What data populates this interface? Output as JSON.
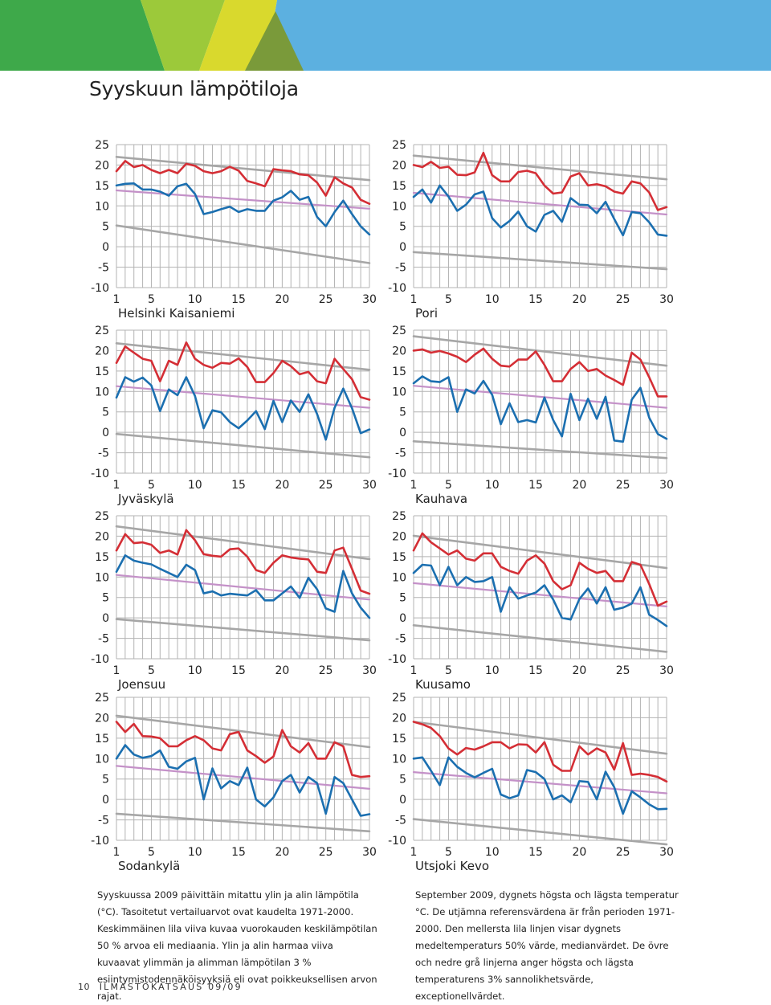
{
  "page": {
    "title": "Syyskuun lämpötiloja",
    "footer_page": "10",
    "footer_text": "ILMASTOKATSAUS 09/09"
  },
  "colors": {
    "max_temp": "#d42e35",
    "min_temp": "#1b6fb0",
    "median_mean": "#c491c8",
    "extreme_ref": "#a6a6a6",
    "grid": "#b3b3b3",
    "banner": [
      "#3ea94a",
      "#9cc93a",
      "#d9d92d",
      "#5cb0e0",
      "#55b0e6"
    ]
  },
  "captions": {
    "fi": "Syyskuussa 2009 päivittäin mitattu ylin ja alin lämpötila (°C). Tasoitetut vertailuarvot ovat kaudelta 1971-2000. Keskimmäinen lila viiva kuvaa vuorokauden keskilämpötilan 50 % arvoa eli mediaania. Ylin ja alin harmaa viiva kuvaavat ylimmän ja alimman lämpötilan 3 % esiintymistodennäköisyyksiä eli ovat poikkeuksellisen arvon rajat.",
    "sv": "September 2009, dygnets högsta och lägsta temperatur °C. De utjämna referensvärdena är från perioden 1971-2000. Den mellersta lila linjen visar dygnets medeltemperaturs 50% värde, medianvärdet. De övre och nedre grå linjerna anger högsta och lägsta temperaturens 3% sannolikhetsvärde, exceptionellvärdet."
  },
  "chart_data": [
    {
      "type": "line",
      "station": "Helsinki Kaisaniemi",
      "x_ticks": [
        1,
        5,
        10,
        15,
        20,
        25,
        30
      ],
      "y_ticks": [
        25,
        20,
        15,
        10,
        5,
        0,
        -5,
        -10
      ],
      "xlim": [
        1,
        30
      ],
      "ylim": [
        -10,
        25
      ],
      "series": [
        {
          "role": "max",
          "values": [
            18.5,
            21,
            19.5,
            20,
            18.8,
            18,
            18.8,
            18,
            20.3,
            19.8,
            18.5,
            18,
            18.5,
            19.6,
            18.6,
            16.1,
            15.5,
            14.8,
            19,
            18.7,
            18.5,
            17.7,
            17.5,
            15.7,
            12.5,
            17,
            15.5,
            14.5,
            11.5,
            10.5
          ]
        },
        {
          "role": "min",
          "values": [
            15,
            15.4,
            15.5,
            14,
            14,
            13.5,
            12.5,
            14.8,
            15.4,
            12.9,
            8,
            8.5,
            9.2,
            9.8,
            8.5,
            9.2,
            8.8,
            8.8,
            11.3,
            12.1,
            13.7,
            11.5,
            12.2,
            7.3,
            5,
            8.5,
            11.3,
            8,
            5,
            3
          ]
        },
        {
          "role": "median",
          "values": [
            13.8,
            9.3
          ]
        },
        {
          "role": "ext_high",
          "values": [
            22,
            16.3
          ]
        },
        {
          "role": "ext_low",
          "values": [
            5.2,
            -4
          ]
        }
      ]
    },
    {
      "type": "line",
      "station": "Pori",
      "x_ticks": [
        1,
        5,
        10,
        15,
        20,
        25,
        30
      ],
      "y_ticks": [
        25,
        20,
        15,
        10,
        5,
        0,
        -5,
        -10
      ],
      "xlim": [
        1,
        30
      ],
      "ylim": [
        -10,
        25
      ],
      "series": [
        {
          "role": "max",
          "values": [
            20,
            19.5,
            20.8,
            19.3,
            19.6,
            17.6,
            17.5,
            18.2,
            23,
            17.5,
            16,
            16,
            18.3,
            18.6,
            18,
            15,
            13,
            13.3,
            17.2,
            18,
            15,
            15.3,
            14.8,
            13.5,
            13,
            16,
            15.5,
            13.3,
            9,
            9.7
          ]
        },
        {
          "role": "min",
          "values": [
            12.2,
            14,
            10.8,
            15,
            12.3,
            8.8,
            10.3,
            12.8,
            13.5,
            7,
            4.7,
            6.3,
            8.6,
            5,
            3.7,
            7.8,
            8.8,
            6.1,
            11.9,
            10.3,
            10.2,
            8.2,
            11,
            6.8,
            2.8,
            8.5,
            8.2,
            6,
            3,
            2.7
          ]
        },
        {
          "role": "median",
          "values": [
            13.2,
            7.9
          ]
        },
        {
          "role": "ext_high",
          "values": [
            22.3,
            16.5
          ]
        },
        {
          "role": "ext_low",
          "values": [
            -1.3,
            -5.5
          ]
        }
      ]
    },
    {
      "type": "line",
      "station": "Jyväskylä",
      "x_ticks": [
        1,
        5,
        10,
        15,
        20,
        25,
        30
      ],
      "y_ticks": [
        25,
        20,
        15,
        10,
        5,
        0,
        -5,
        -10
      ],
      "xlim": [
        1,
        30
      ],
      "ylim": [
        -10,
        25
      ],
      "series": [
        {
          "role": "max",
          "values": [
            17,
            21,
            19.5,
            18,
            17.5,
            12.5,
            17.5,
            16.5,
            22,
            18,
            16.5,
            15.8,
            17,
            16.8,
            18.1,
            16,
            12.3,
            12.3,
            14.5,
            17.5,
            16.2,
            14.2,
            14.8,
            12.5,
            12,
            18,
            15.5,
            13,
            8.6,
            8
          ]
        },
        {
          "role": "min",
          "values": [
            8.5,
            13.5,
            12.4,
            13.4,
            11.5,
            5.2,
            10.5,
            9.1,
            13.5,
            8.9,
            1,
            5.4,
            4.9,
            2.5,
            1,
            2.9,
            5.2,
            0.8,
            7.7,
            2.5,
            7.8,
            5,
            9.3,
            4.5,
            -1.8,
            6,
            10.7,
            5.9,
            -0.2,
            0.7
          ]
        },
        {
          "role": "median",
          "values": [
            11.3,
            6
          ]
        },
        {
          "role": "ext_high",
          "values": [
            21.8,
            15.3
          ]
        },
        {
          "role": "ext_low",
          "values": [
            -0.4,
            -6.1
          ]
        }
      ]
    },
    {
      "type": "line",
      "station": "Kauhava",
      "x_ticks": [
        1,
        5,
        10,
        15,
        20,
        25,
        30
      ],
      "y_ticks": [
        25,
        20,
        15,
        10,
        5,
        0,
        -5,
        -10
      ],
      "xlim": [
        1,
        30
      ],
      "ylim": [
        -10,
        25
      ],
      "series": [
        {
          "role": "max",
          "values": [
            20,
            20.3,
            19.5,
            19.9,
            19.3,
            18.5,
            17.2,
            19,
            20.5,
            18,
            16.3,
            16.1,
            17.8,
            17.8,
            19.8,
            16.5,
            12.5,
            12.5,
            15.5,
            17.2,
            15,
            15.5,
            13.9,
            12.8,
            11.6,
            19.5,
            17.8,
            13.5,
            8.8,
            8.8
          ]
        },
        {
          "role": "min",
          "values": [
            12,
            13.7,
            12.5,
            12.3,
            13.5,
            5,
            10.5,
            9.5,
            12.6,
            9.2,
            2,
            7.1,
            2.5,
            3,
            2.4,
            8.5,
            3,
            -1,
            9.4,
            3,
            8.2,
            3.3,
            8.7,
            -2,
            -2.3,
            8,
            10.9,
            3.6,
            -0.4,
            -1.6
          ]
        },
        {
          "role": "median",
          "values": [
            11.4,
            6
          ]
        },
        {
          "role": "ext_high",
          "values": [
            23.5,
            16.3
          ]
        },
        {
          "role": "ext_low",
          "values": [
            -2.2,
            -6.3
          ]
        }
      ]
    },
    {
      "type": "line",
      "station": "Joensuu",
      "x_ticks": [
        1,
        5,
        10,
        15,
        20,
        25,
        30
      ],
      "y_ticks": [
        25,
        20,
        15,
        10,
        5,
        0,
        -5,
        -10
      ],
      "xlim": [
        1,
        30
      ],
      "ylim": [
        -10,
        25
      ],
      "series": [
        {
          "role": "max",
          "values": [
            16.5,
            20.5,
            18.3,
            18.5,
            17.9,
            15.9,
            16.5,
            15.5,
            21.5,
            19,
            15.6,
            15.2,
            15,
            16.8,
            17,
            15,
            11.7,
            11,
            13.5,
            15.3,
            14.8,
            14.5,
            14.3,
            11.3,
            11,
            16.5,
            17.2,
            12,
            6.7,
            5.9
          ]
        },
        {
          "role": "min",
          "values": [
            11.3,
            15.3,
            14,
            13.5,
            13.1,
            12,
            11,
            10,
            13,
            11.7,
            6,
            6.5,
            5.5,
            5.9,
            5.7,
            5.5,
            6.8,
            4.3,
            4.3,
            6,
            7.7,
            4.9,
            9.8,
            7,
            2.3,
            1.5,
            11.5,
            6,
            2.5,
            0
          ]
        },
        {
          "role": "median",
          "values": [
            10.5,
            4.5
          ]
        },
        {
          "role": "ext_high",
          "values": [
            22.4,
            14.4
          ]
        },
        {
          "role": "ext_low",
          "values": [
            -0.3,
            -5.5
          ]
        }
      ]
    },
    {
      "type": "line",
      "station": "Kuusamo",
      "x_ticks": [
        1,
        5,
        10,
        15,
        20,
        25,
        30
      ],
      "y_ticks": [
        25,
        20,
        15,
        10,
        5,
        0,
        -5,
        -10
      ],
      "xlim": [
        1,
        30
      ],
      "ylim": [
        -10,
        25
      ],
      "series": [
        {
          "role": "max",
          "values": [
            16.5,
            20.7,
            18.5,
            17,
            15.5,
            16.5,
            14.5,
            14,
            15.8,
            15.8,
            12.5,
            11.5,
            10.8,
            14,
            15.3,
            13.3,
            9,
            7,
            8,
            13.5,
            12,
            11,
            11.5,
            9,
            9,
            13.7,
            13,
            8.3,
            3,
            4
          ]
        },
        {
          "role": "min",
          "values": [
            11,
            13,
            12.8,
            8,
            12.5,
            8,
            10,
            8.8,
            9,
            10,
            1.5,
            7.5,
            4.7,
            5.5,
            6.2,
            8,
            4.5,
            0,
            -0.4,
            4.6,
            7.2,
            3.5,
            7.5,
            2,
            2.5,
            3.5,
            7.5,
            0.8,
            -0.5,
            -2
          ]
        },
        {
          "role": "median",
          "values": [
            8.5,
            2.8
          ]
        },
        {
          "role": "ext_high",
          "values": [
            20.1,
            12.2
          ]
        },
        {
          "role": "ext_low",
          "values": [
            -1.8,
            -8.3
          ]
        }
      ]
    },
    {
      "type": "line",
      "station": "Sodankylä",
      "x_ticks": [
        1,
        5,
        10,
        15,
        20,
        25,
        30
      ],
      "y_ticks": [
        25,
        20,
        15,
        10,
        5,
        0,
        -5,
        -10
      ],
      "xlim": [
        1,
        30
      ],
      "ylim": [
        -10,
        25
      ],
      "series": [
        {
          "role": "max",
          "values": [
            19,
            16.5,
            18.5,
            15.5,
            15.4,
            15,
            13,
            13,
            14.5,
            15.5,
            14.5,
            12.5,
            12,
            16,
            16.5,
            12,
            10.6,
            9,
            10.5,
            17,
            13,
            11.5,
            13.8,
            10,
            10,
            14,
            13,
            6,
            5.5,
            5.7
          ]
        },
        {
          "role": "min",
          "values": [
            10,
            13.3,
            11,
            10.2,
            10.6,
            12,
            8,
            7.5,
            9.3,
            10.2,
            0,
            7.6,
            2.7,
            4.5,
            3.5,
            7.8,
            0,
            -1.7,
            0.5,
            4.5,
            6,
            1.7,
            5.5,
            4,
            -3.5,
            5.5,
            4,
            0,
            -4,
            -3.6
          ]
        },
        {
          "role": "median",
          "values": [
            8.2,
            2.6
          ]
        },
        {
          "role": "ext_high",
          "values": [
            20.5,
            12.8
          ]
        },
        {
          "role": "ext_low",
          "values": [
            -3.5,
            -7.8
          ]
        }
      ]
    },
    {
      "type": "line",
      "station": "Utsjoki Kevo",
      "x_ticks": [
        1,
        5,
        10,
        15,
        20,
        25,
        30
      ],
      "y_ticks": [
        25,
        20,
        15,
        10,
        5,
        0,
        -5,
        -10
      ],
      "xlim": [
        1,
        30
      ],
      "ylim": [
        -10,
        25
      ],
      "series": [
        {
          "role": "max",
          "values": [
            19,
            18.4,
            17.5,
            15.5,
            12.5,
            11,
            12.6,
            12.2,
            13,
            14,
            14,
            12.5,
            13.5,
            13.4,
            11.5,
            14,
            8.5,
            7,
            7,
            13,
            11,
            12.5,
            11.5,
            7.3,
            13.8,
            6,
            6.3,
            6,
            5.5,
            4.4
          ]
        },
        {
          "role": "min",
          "values": [
            10,
            10.3,
            7,
            3.5,
            10.3,
            8,
            6.5,
            5.4,
            6.5,
            7.5,
            1.2,
            0.3,
            1,
            7.2,
            6.7,
            5,
            0,
            1,
            -0.7,
            4.5,
            4.3,
            0,
            6.8,
            3,
            -3.5,
            2,
            0.5,
            -1.2,
            -2.4,
            -2.3
          ]
        },
        {
          "role": "median",
          "values": [
            6.7,
            1.5
          ]
        },
        {
          "role": "ext_high",
          "values": [
            19,
            11.2
          ]
        },
        {
          "role": "ext_low",
          "values": [
            -4.8,
            -11
          ]
        }
      ]
    }
  ]
}
